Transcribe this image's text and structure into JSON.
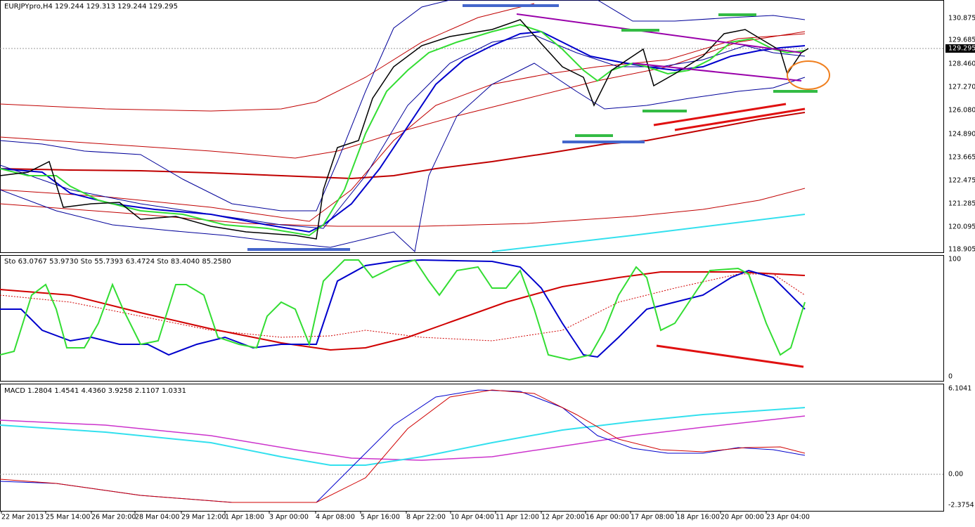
{
  "main_panel": {
    "header": "EURJPYpro,H4  129.244 129.313 129.244 129.295",
    "price_labels": [
      "130.875",
      "129.685",
      "128.460",
      "127.270",
      "126.080",
      "124.890",
      "123.665",
      "122.475",
      "121.285",
      "120.095",
      "118.905"
    ],
    "current_price": "129.295"
  },
  "stochastic_panel": {
    "header": "Sto 63.0767 53.9730 Sto 55.7393 63.4724 Sto 83.4040 85.2580",
    "labels": [
      "100",
      "0"
    ]
  },
  "macd_panel": {
    "header": "MACD 1.2804 1.4541 4.4360 3.9258 2.1107 1.0331",
    "labels": [
      "6.1041",
      "0.00",
      "-2.3754"
    ]
  },
  "time_axis": [
    "22 Mar 2013",
    "25 Mar 14:00",
    "26 Mar 20:00",
    "28 Mar 04:00",
    "29 Mar 12:00",
    "1 Apr 18:00",
    "3 Apr 00:00",
    "4 Apr 08:00",
    "5 Apr 16:00",
    "8 Apr 22:00",
    "10 Apr 04:00",
    "11 Apr 12:00",
    "12 Apr 20:00",
    "16 Apr 00:00",
    "17 Apr 08:00",
    "18 Apr 16:00",
    "20 Apr 00:00",
    "23 Apr 04:00"
  ]
}
